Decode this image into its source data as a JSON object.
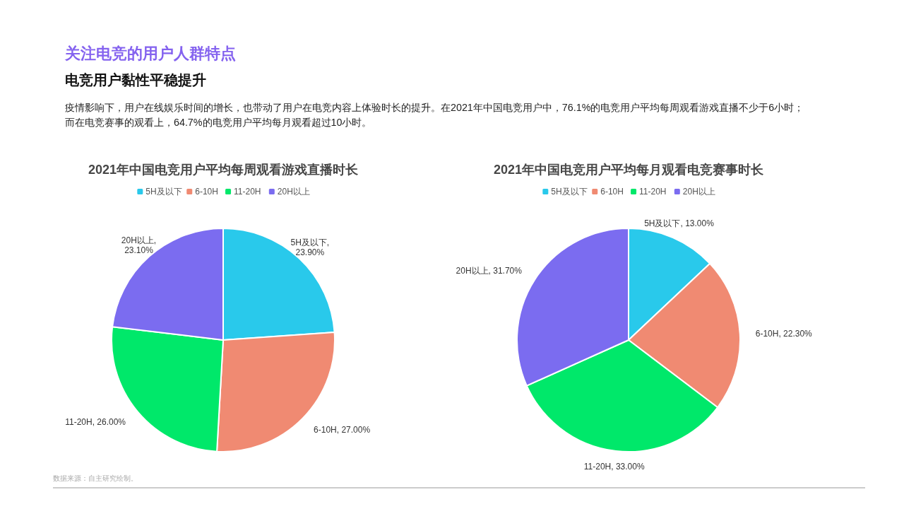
{
  "chart_data": [
    {
      "type": "other",
      "title": "关注电竞的用户人群特点",
      "subtitle": "电竞用户黏性平稳提升",
      "annotations": [
        "疫情影响下，用户在线娱乐时间的增长，也带动了用户在电竞内容上体验时长的提升。在2021年中国电竞用户中，76.1%的电竞用户平均每周观看游戏直播不少于6小时；",
        "而在电竞赛事的观看上，64.7%的电竞用户平均每月观看超过10小时。",
        "数据来源：自主研究绘制。"
      ]
    },
    {
      "type": "pie",
      "title": "2021年中国电竞用户平均每周观看游戏直播时长",
      "categories": [
        "5H及以下",
        "6-10H",
        "11-20H",
        "20H以上"
      ],
      "values": [
        23.9,
        27.0,
        26.0,
        23.1
      ],
      "value_labels": [
        "5H及以下, 23.90%",
        "6-10H, 27.00%",
        "11-20H, 26.00%",
        "20H以上, 23.10%"
      ],
      "colors": [
        "#29c9eb",
        "#f08a72",
        "#00e86a",
        "#7b6cf0"
      ],
      "legend": "top"
    },
    {
      "type": "pie",
      "title": "2021年中国电竞用户平均每月观看电竞赛事时长",
      "categories": [
        "5H及以下",
        "6-10H",
        "11-20H",
        "20H以上"
      ],
      "values": [
        13.0,
        22.3,
        33.0,
        31.7
      ],
      "value_labels": [
        "5H及以下, 13.00%",
        "6-10H, 22.30%",
        "11-20H, 33.00%",
        "20H以上, 31.70%"
      ],
      "colors": [
        "#29c9eb",
        "#f08a72",
        "#00e86a",
        "#7b6cf0"
      ],
      "legend": "top"
    }
  ]
}
